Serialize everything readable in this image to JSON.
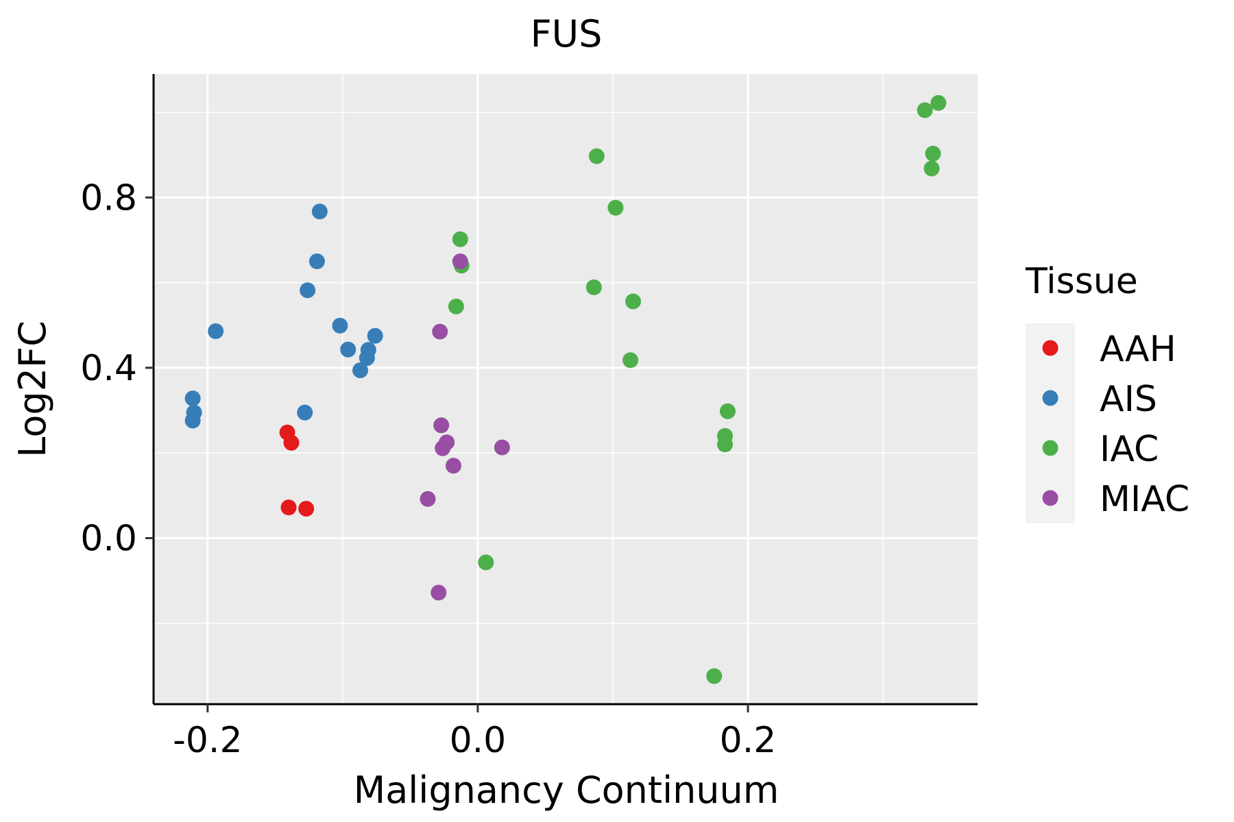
{
  "chart_data": {
    "type": "scatter",
    "title": "FUS",
    "xlabel": "Malignancy Continuum",
    "ylabel": "Log2FC",
    "xlim": [
      -0.24,
      0.37
    ],
    "ylim": [
      -0.39,
      1.09
    ],
    "x_ticks": [
      -0.2,
      0.0,
      0.2
    ],
    "x_tick_labels": [
      "-0.2",
      "0.0",
      "0.2"
    ],
    "y_ticks": [
      0.0,
      0.4,
      0.8
    ],
    "y_tick_labels": [
      "0.0",
      "0.4",
      "0.8"
    ],
    "grid": true,
    "legend": {
      "title": "Tissue",
      "position": "right"
    },
    "series": [
      {
        "name": "AAH",
        "color": "#E41A1C",
        "points": [
          {
            "x": -0.141,
            "y": 0.248
          },
          {
            "x": -0.138,
            "y": 0.224
          },
          {
            "x": -0.14,
            "y": 0.072
          },
          {
            "x": -0.127,
            "y": 0.069
          }
        ]
      },
      {
        "name": "AIS",
        "color": "#377EB8",
        "points": [
          {
            "x": -0.117,
            "y": 0.767
          },
          {
            "x": -0.119,
            "y": 0.65
          },
          {
            "x": -0.126,
            "y": 0.582
          },
          {
            "x": -0.194,
            "y": 0.486
          },
          {
            "x": -0.102,
            "y": 0.499
          },
          {
            "x": -0.096,
            "y": 0.443
          },
          {
            "x": -0.081,
            "y": 0.442
          },
          {
            "x": -0.082,
            "y": 0.423
          },
          {
            "x": -0.087,
            "y": 0.394
          },
          {
            "x": -0.076,
            "y": 0.475
          },
          {
            "x": -0.211,
            "y": 0.328
          },
          {
            "x": -0.21,
            "y": 0.295
          },
          {
            "x": -0.211,
            "y": 0.276
          },
          {
            "x": -0.128,
            "y": 0.295
          }
        ]
      },
      {
        "name": "IAC",
        "color": "#4DAF4A",
        "points": [
          {
            "x": 0.341,
            "y": 1.022
          },
          {
            "x": 0.331,
            "y": 1.005
          },
          {
            "x": 0.337,
            "y": 0.903
          },
          {
            "x": 0.336,
            "y": 0.868
          },
          {
            "x": 0.088,
            "y": 0.897
          },
          {
            "x": 0.102,
            "y": 0.776
          },
          {
            "x": -0.013,
            "y": 0.702
          },
          {
            "x": -0.012,
            "y": 0.64
          },
          {
            "x": 0.086,
            "y": 0.589
          },
          {
            "x": -0.016,
            "y": 0.544
          },
          {
            "x": 0.115,
            "y": 0.556
          },
          {
            "x": 0.113,
            "y": 0.418
          },
          {
            "x": 0.185,
            "y": 0.298
          },
          {
            "x": 0.183,
            "y": 0.24
          },
          {
            "x": 0.183,
            "y": 0.22
          },
          {
            "x": 0.006,
            "y": -0.057
          },
          {
            "x": 0.175,
            "y": -0.324
          }
        ]
      },
      {
        "name": "MIAC",
        "color": "#984EA3",
        "points": [
          {
            "x": -0.013,
            "y": 0.65
          },
          {
            "x": -0.028,
            "y": 0.485
          },
          {
            "x": -0.027,
            "y": 0.265
          },
          {
            "x": -0.023,
            "y": 0.225
          },
          {
            "x": -0.026,
            "y": 0.211
          },
          {
            "x": -0.018,
            "y": 0.17
          },
          {
            "x": 0.018,
            "y": 0.213
          },
          {
            "x": -0.037,
            "y": 0.092
          },
          {
            "x": -0.029,
            "y": -0.128
          }
        ]
      }
    ]
  }
}
